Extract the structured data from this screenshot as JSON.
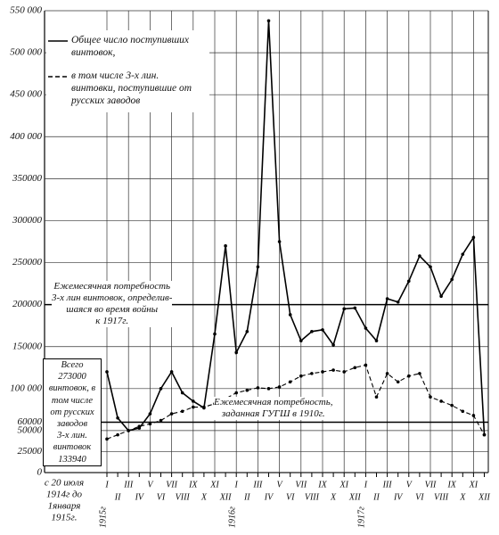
{
  "chart_data": {
    "type": "line",
    "categories": [
      "I",
      "II",
      "III",
      "IV",
      "V",
      "VI",
      "VII",
      "VIII",
      "IX",
      "X",
      "XI",
      "XII",
      "I",
      "II",
      "III",
      "IV",
      "V",
      "VI",
      "VII",
      "VIII",
      "IX",
      "X",
      "XI",
      "XII",
      "I",
      "II",
      "III",
      "IV",
      "V",
      "VI",
      "VII",
      "VIII",
      "IX",
      "X",
      "XI",
      "XII"
    ],
    "year_labels": [
      {
        "label": "1915г",
        "index": 0
      },
      {
        "label": "1916г",
        "index": 12
      },
      {
        "label": "1917г",
        "index": 24
      }
    ],
    "start_label": [
      "с 20 июля",
      "1914г до",
      "1января",
      "1915г."
    ],
    "series": [
      {
        "name": "Общее число поступивших винтовок,",
        "color": "#000000",
        "dash": false,
        "values": [
          120000,
          65000,
          50000,
          53000,
          70000,
          100000,
          120000,
          95000,
          85000,
          77000,
          165000,
          270000,
          143000,
          168000,
          245000,
          538000,
          275000,
          188000,
          157000,
          168000,
          170000,
          152000,
          195000,
          196000,
          172000,
          157000,
          207000,
          203000,
          228000,
          258000,
          245000,
          210000,
          230000,
          260000,
          280000,
          45000
        ]
      },
      {
        "name": "в том числе 3-х лин. винтовки, поступившие от русских заводов",
        "color": "#000000",
        "dash": true,
        "values": [
          40000,
          45000,
          50000,
          55000,
          58000,
          62000,
          70000,
          73000,
          78000,
          78000,
          82000,
          88000,
          95000,
          98000,
          101000,
          100000,
          102000,
          108000,
          115000,
          118000,
          120000,
          122000,
          120000,
          125000,
          128000,
          90000,
          118000,
          108000,
          115000,
          118000,
          90000,
          85000,
          80000,
          73000,
          68000,
          45000
        ]
      }
    ],
    "reference_lines": [
      {
        "value": 200000,
        "text": [
          "Ежемесячная потребность",
          "3-х лин винтовок, определив-",
          "шаяся во время войны",
          "к 1917г."
        ]
      },
      {
        "value": 60000,
        "text": [
          "Ежемесячная потребность,",
          "заданная ГУГШ в 1910г."
        ]
      }
    ],
    "box_text": [
      "Всего",
      "273000",
      "винтовок, в",
      "том числе",
      "от русских",
      "заводов",
      "3-х лин.",
      "винтовок",
      "133940"
    ],
    "ylim": [
      0,
      550000
    ],
    "yticks": [
      0,
      {
        "value": 25000,
        "label": "25000"
      },
      {
        "value": 50000,
        "label": "50000"
      },
      {
        "value": 60000,
        "label": "60000"
      },
      {
        "value": 100000,
        "label": "100 000"
      },
      {
        "value": 150000,
        "label": "150000"
      },
      {
        "value": 200000,
        "label": "200000"
      },
      {
        "value": 250000,
        "label": "250000"
      },
      {
        "value": 300000,
        "label": "300000"
      },
      {
        "value": 350000,
        "label": "350000"
      },
      {
        "value": 400000,
        "label": "400 000"
      },
      {
        "value": 450000,
        "label": "450 000"
      },
      {
        "value": 500000,
        "label": "500 000"
      },
      {
        "value": 550000,
        "label": "550 000"
      }
    ],
    "grid": true
  }
}
